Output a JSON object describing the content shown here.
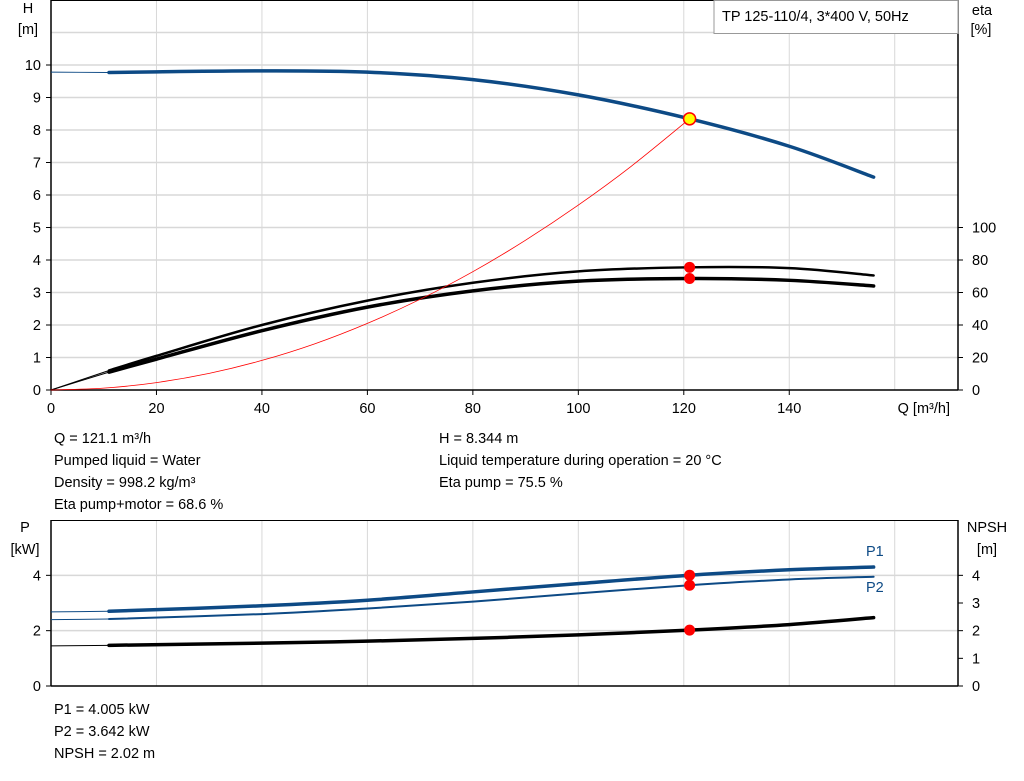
{
  "chart_data": [
    {
      "type": "line",
      "title": "TP 125-110/4, 3*400 V, 50Hz",
      "xlabel": "Q [m³/h]",
      "ylabel_left": {
        "name": "H",
        "unit": "[m]"
      },
      "ylabel_right": {
        "name": "eta",
        "unit": "[%]"
      },
      "xlim": [
        0,
        172
      ],
      "ylim_left": [
        0,
        12
      ],
      "ylim_right": [
        0,
        240
      ],
      "x_ticks": [
        "0",
        "20",
        "40",
        "60",
        "80",
        "100",
        "120",
        "140"
      ],
      "y_ticks_left": [
        "0",
        "1",
        "2",
        "3",
        "4",
        "5",
        "6",
        "7",
        "8",
        "9",
        "10"
      ],
      "y_ticks_right": [
        "0",
        "20",
        "40",
        "60",
        "80",
        "100"
      ],
      "grid": true,
      "series": [
        {
          "id": "H",
          "axis": "left",
          "color": "#0d4a85",
          "x": [
            0,
            11,
            20,
            40,
            60,
            80,
            100,
            121.1,
            140,
            156
          ],
          "y": [
            9.78,
            9.77,
            9.79,
            9.82,
            9.78,
            9.55,
            9.08,
            8.344,
            7.5,
            6.55
          ]
        },
        {
          "id": "eta-pump",
          "axis": "right",
          "color": "#000000",
          "x": [
            0,
            11,
            20,
            40,
            60,
            80,
            100,
            121.1,
            140,
            156
          ],
          "y": [
            0,
            12,
            21,
            40,
            55,
            66,
            73,
            75.5,
            75,
            70.5
          ]
        },
        {
          "id": "eta-pump-motor",
          "axis": "right",
          "color": "#000000",
          "x": [
            0,
            11,
            20,
            40,
            60,
            80,
            100,
            121.1,
            140,
            156
          ],
          "y": [
            0,
            11,
            19,
            36.5,
            51,
            61,
            67,
            68.6,
            67.5,
            64
          ]
        },
        {
          "id": "system-curve",
          "axis": "left",
          "color": "#ff0000",
          "x": [
            0,
            10,
            20,
            30,
            40,
            50,
            60,
            70,
            80,
            90,
            100,
            110,
            121.1
          ],
          "y": [
            0,
            0.057,
            0.228,
            0.512,
            0.91,
            1.42,
            2.05,
            2.79,
            3.64,
            4.61,
            5.69,
            6.88,
            8.344
          ]
        }
      ],
      "duty_point": {
        "Q": 121.1,
        "H": 8.344,
        "eta_pump": 75.5,
        "eta_pump_motor": 68.6
      }
    },
    {
      "type": "line",
      "ylabel_left": {
        "name": "P",
        "unit": "[kW]"
      },
      "ylabel_right": {
        "name": "NPSH",
        "unit": "[m]"
      },
      "xlim": [
        0,
        172
      ],
      "ylim_left": [
        0,
        6
      ],
      "ylim_right": [
        0,
        6
      ],
      "y_ticks_left": [
        "0",
        "2",
        "4"
      ],
      "y_ticks_right": [
        "0",
        "1",
        "2",
        "3",
        "4"
      ],
      "grid": true,
      "series": [
        {
          "id": "P1",
          "name": "P1",
          "axis": "left",
          "color": "#0d4a85",
          "x": [
            0,
            11,
            40,
            60,
            80,
            100,
            121.1,
            140,
            156
          ],
          "y": [
            2.68,
            2.7,
            2.9,
            3.1,
            3.4,
            3.7,
            4.005,
            4.2,
            4.3
          ]
        },
        {
          "id": "P2",
          "name": "P2",
          "axis": "left",
          "color": "#0d4a85",
          "x": [
            0,
            11,
            40,
            60,
            80,
            100,
            121.1,
            140,
            156
          ],
          "y": [
            2.4,
            2.42,
            2.6,
            2.8,
            3.05,
            3.35,
            3.642,
            3.85,
            3.95
          ]
        },
        {
          "id": "NPSH",
          "axis": "right",
          "color": "#000000",
          "x": [
            0,
            11,
            40,
            60,
            80,
            100,
            121.1,
            140,
            156
          ],
          "y": [
            1.45,
            1.47,
            1.55,
            1.62,
            1.72,
            1.85,
            2.02,
            2.22,
            2.47
          ]
        }
      ],
      "duty_point": {
        "Q": 121.1,
        "P1": 4.005,
        "P2": 3.642,
        "NPSH": 2.02
      }
    }
  ],
  "info_top": {
    "left": [
      "Q = 121.1 m³/h",
      "Pumped liquid = Water",
      "Density = 998.2 kg/m³",
      "Eta pump+motor = 68.6 %"
    ],
    "right": [
      "H = 8.344 m",
      "Liquid temperature during operation = 20 °C",
      "Eta pump = 75.5 %"
    ]
  },
  "info_bottom": [
    "P1 = 4.005 kW",
    "P2 = 3.642 kW",
    "NPSH = 2.02 m"
  ],
  "colors": {
    "curve_blue": "#0d4a85",
    "point_red": "#ff0000",
    "point_yellow": "#ffff00",
    "grid": "#d8d8d8"
  }
}
